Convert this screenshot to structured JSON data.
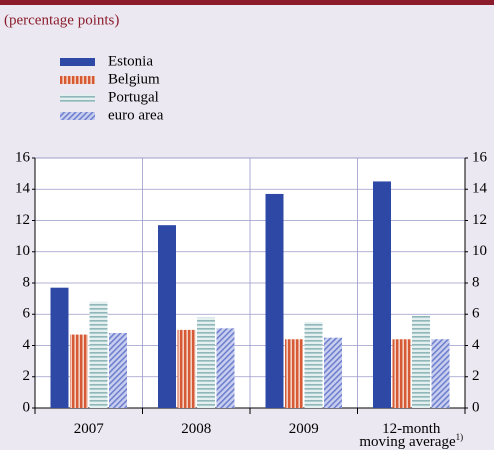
{
  "chart_data": {
    "type": "bar",
    "subtitle": "(percentage points)",
    "categories": [
      "2007",
      "2008",
      "2009",
      "12-month\nmoving average"
    ],
    "category_notes": [
      null,
      null,
      null,
      "1)"
    ],
    "series": [
      {
        "name": "Estonia",
        "color": "#2e48a6",
        "pattern": "solid",
        "values": [
          7.7,
          11.7,
          13.7,
          14.5
        ]
      },
      {
        "name": "Belgium",
        "color": "#d65a36",
        "pattern": "vertical",
        "values": [
          4.7,
          5.0,
          4.4,
          4.4
        ]
      },
      {
        "name": "Portugal",
        "color": "#8fb6b9",
        "pattern": "horizontal",
        "values": [
          6.8,
          5.8,
          5.5,
          5.9
        ]
      },
      {
        "name": "euro area",
        "color": "#6f80cf",
        "pattern": "diagonal",
        "values": [
          4.8,
          5.1,
          4.5,
          4.4
        ]
      }
    ],
    "ylim": [
      0,
      16
    ],
    "yticks": [
      0,
      2,
      4,
      6,
      8,
      10,
      12,
      14,
      16
    ],
    "grid": true,
    "right_axis": true
  }
}
